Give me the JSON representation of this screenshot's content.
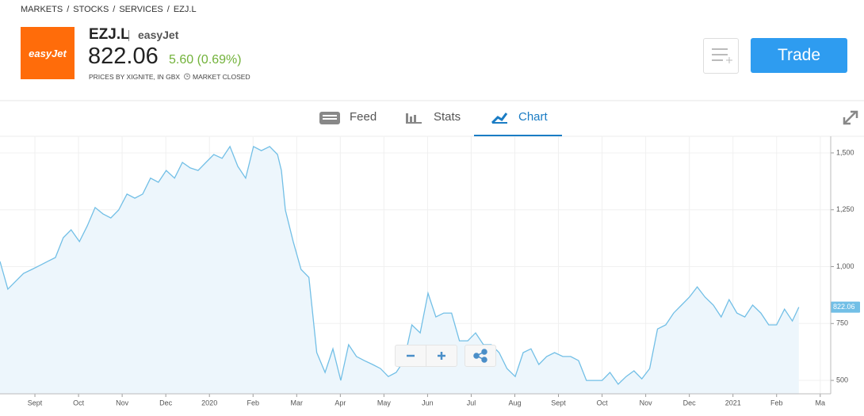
{
  "header": {
    "breadcrumb": [
      "MARKETS",
      "STOCKS",
      "SERVICES",
      "EZJ.L"
    ],
    "breadcrumb_separator": "/",
    "logo": "easyJet",
    "ticker": "EZJ.L",
    "name": "easyJet",
    "price": "822.06",
    "change": "5.60 (0.69%)",
    "source_note": "PRICES BY XIGNITE, IN GBX",
    "market_status": "MARKET CLOSED",
    "trade_button": "Trade"
  },
  "tabs": [
    "Feed",
    "Stats",
    "Chart"
  ],
  "chart_data": {
    "type": "line",
    "color": "#72bfe6",
    "area_color": "#edf6fc",
    "grid": true,
    "x": [
      0.2,
      0.38,
      0.56,
      0.74,
      0.93,
      1.11,
      1.29,
      1.47,
      1.65,
      1.83,
      2.02,
      2.2,
      2.38,
      2.56,
      2.74,
      2.92,
      3.11,
      3.29,
      3.47,
      3.65,
      3.83,
      4.01,
      4.2,
      4.38,
      4.56,
      4.74,
      4.92,
      5.1,
      5.29,
      5.47,
      5.65,
      5.83,
      6.01,
      6.19,
      6.38,
      6.56,
      6.65,
      6.74,
      6.92,
      7.1,
      7.28,
      7.46,
      7.65,
      7.83,
      8.01,
      8.19,
      8.37,
      8.55,
      8.74,
      8.92,
      9.1,
      9.28,
      9.46,
      9.64,
      9.83,
      10.01,
      10.19,
      10.37,
      10.55,
      10.73,
      10.92,
      11.1,
      11.28,
      11.46,
      11.64,
      11.82,
      12.01,
      12.19,
      12.37,
      12.55,
      12.73,
      12.91,
      13.1,
      13.28,
      13.46,
      13.64,
      13.82,
      14.0,
      14.18,
      14.37,
      14.55,
      14.73,
      14.91,
      15.09,
      15.27,
      15.46,
      15.64,
      15.82,
      16.0,
      16.18,
      16.36,
      16.55,
      16.73,
      16.91,
      17.09,
      17.27,
      17.45,
      17.64,
      17.82,
      18.0,
      18.18,
      18.36,
      18.51
    ],
    "values": [
      1023,
      901,
      936,
      970,
      988,
      1005,
      1023,
      1040,
      1127,
      1162,
      1110,
      1179,
      1260,
      1232,
      1214,
      1249,
      1319,
      1301,
      1319,
      1389,
      1371,
      1423,
      1389,
      1458,
      1434,
      1423,
      1458,
      1493,
      1476,
      1528,
      1441,
      1389,
      1528,
      1510,
      1528,
      1493,
      1423,
      1249,
      1110,
      988,
      953,
      622,
      535,
      639,
      500,
      657,
      605,
      587,
      570,
      552,
      517,
      535,
      587,
      744,
      709,
      883,
      779,
      796,
      796,
      674,
      674,
      709,
      657,
      657,
      622,
      552,
      517,
      622,
      639,
      570,
      605,
      622,
      605,
      605,
      587,
      500,
      500,
      500,
      535,
      483,
      517,
      542,
      507,
      552,
      726,
      744,
      796,
      831,
      866,
      911,
      866,
      831,
      779,
      855,
      796,
      779,
      831,
      796,
      744,
      744,
      813,
      761,
      822.06
    ],
    "xlim": [
      0.2,
      19.24
    ],
    "ylim": [
      441,
      1573
    ],
    "xticks": [
      {
        "value": 1,
        "label": "Sept"
      },
      {
        "value": 2,
        "label": "Oct"
      },
      {
        "value": 3,
        "label": "Nov"
      },
      {
        "value": 4,
        "label": "Dec"
      },
      {
        "value": 5,
        "label": "2020"
      },
      {
        "value": 6,
        "label": "Feb"
      },
      {
        "value": 7,
        "label": "Mar"
      },
      {
        "value": 8,
        "label": "Apr"
      },
      {
        "value": 9,
        "label": "May"
      },
      {
        "value": 10,
        "label": "Jun"
      },
      {
        "value": 11,
        "label": "Jul"
      },
      {
        "value": 12,
        "label": "Aug"
      },
      {
        "value": 13,
        "label": "Sept"
      },
      {
        "value": 14,
        "label": "Oct"
      },
      {
        "value": 15,
        "label": "Nov"
      },
      {
        "value": 16,
        "label": "Dec"
      },
      {
        "value": 17,
        "label": "2021"
      },
      {
        "value": 18,
        "label": "Feb"
      },
      {
        "value": 19,
        "label": "Ma"
      }
    ],
    "yticks": [
      500,
      750,
      {
        "value": 1000,
        "label": "1,000"
      },
      {
        "value": 1250,
        "label": "1,250"
      },
      {
        "value": 1500,
        "label": "1,500"
      }
    ]
  }
}
